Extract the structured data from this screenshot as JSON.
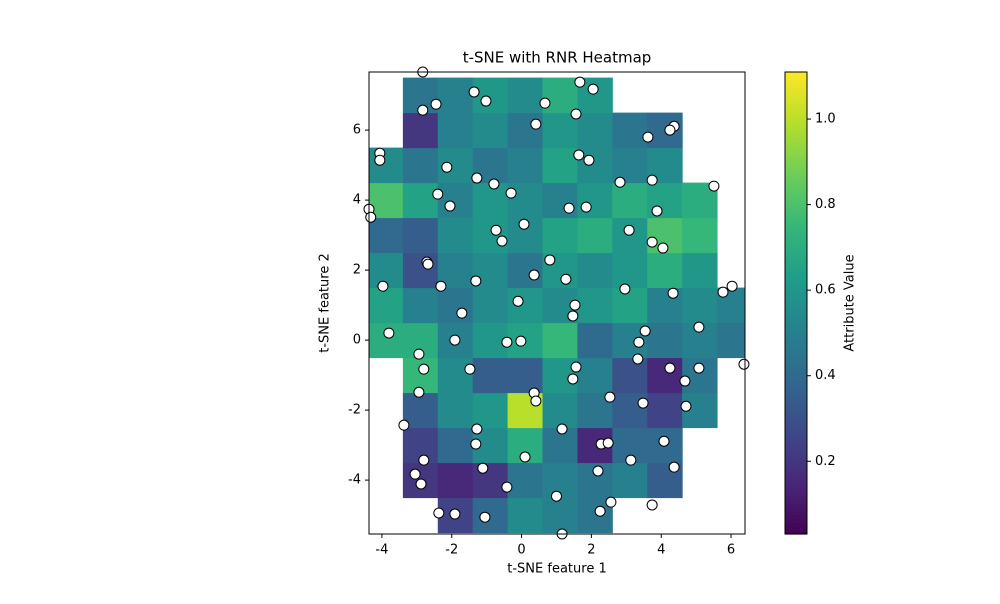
{
  "chart_data": {
    "type": "scatter-heatmap",
    "title": "t-SNE with RNR Heatmap",
    "x_label": "t-SNE feature 1",
    "y_label": "t-SNE feature 2",
    "colorbar_label": "Attribute Value",
    "xlim": [
      -4.37,
      6.4
    ],
    "ylim": [
      -5.54,
      7.66
    ],
    "xticks": [
      -4,
      -2,
      0,
      2,
      4,
      6
    ],
    "yticks": [
      -4,
      -2,
      0,
      2,
      4,
      6
    ],
    "clim": [
      0.03,
      1.11
    ],
    "cticks": [
      0.2,
      0.4,
      0.6,
      0.8,
      {
        "value": 1,
        "label": "1.0"
      }
    ],
    "colormap": "viridis",
    "point_color": "#ffffff",
    "point_edge": "#000000",
    "heatmap": {
      "x_edges": [
        -4.4,
        -3.4,
        -2.4,
        -1.4,
        -0.4,
        0.6,
        1.6,
        2.6,
        3.6,
        4.6,
        5.6,
        6.6
      ],
      "y_edges": [
        -5.5,
        -4.5,
        -3.5,
        -2.5,
        -1.5,
        -0.5,
        0.5,
        1.5,
        2.5,
        3.5,
        4.5,
        5.5,
        6.5,
        7.5
      ],
      "values": [
        [
          null,
          null,
          0.25,
          0.4,
          0.55,
          0.5,
          0.45,
          null,
          null,
          null,
          null
        ],
        [
          null,
          0.2,
          0.15,
          0.2,
          0.45,
          0.5,
          0.45,
          0.5,
          0.35,
          null,
          null
        ],
        [
          null,
          0.25,
          0.4,
          0.55,
          0.7,
          0.45,
          0.15,
          0.4,
          0.4,
          null,
          null
        ],
        [
          null,
          0.35,
          0.55,
          0.6,
          1.0,
          0.55,
          0.45,
          0.35,
          0.25,
          0.5,
          null
        ],
        [
          null,
          0.75,
          0.55,
          0.35,
          0.35,
          0.6,
          0.5,
          0.3,
          0.15,
          0.45,
          null
        ],
        [
          0.7,
          0.7,
          0.5,
          0.6,
          0.65,
          0.75,
          0.4,
          0.5,
          0.45,
          0.5,
          0.45
        ],
        [
          0.65,
          0.5,
          0.45,
          0.55,
          0.6,
          0.55,
          0.6,
          0.65,
          0.5,
          0.55,
          0.5
        ],
        [
          0.55,
          0.3,
          0.5,
          0.55,
          0.45,
          0.6,
          0.55,
          0.6,
          0.7,
          0.6,
          null
        ],
        [
          0.4,
          0.35,
          0.55,
          0.6,
          0.55,
          0.65,
          0.7,
          0.6,
          0.8,
          0.75,
          null
        ],
        [
          0.8,
          0.65,
          0.5,
          0.6,
          0.55,
          0.5,
          0.6,
          0.7,
          0.65,
          0.7,
          null
        ],
        [
          0.55,
          0.45,
          0.55,
          0.45,
          0.5,
          0.65,
          0.55,
          0.5,
          0.55,
          null,
          null
        ],
        [
          null,
          0.2,
          0.5,
          0.55,
          0.45,
          0.6,
          0.55,
          0.45,
          0.4,
          null,
          null
        ],
        [
          null,
          0.45,
          0.5,
          0.6,
          0.55,
          0.7,
          0.6,
          null,
          null,
          null,
          null
        ]
      ]
    },
    "x": [
      -2.83,
      -1.36,
      -1.02,
      1.67,
      2.05,
      0.67,
      -2.45,
      -2.83,
      1.56,
      0.41,
      4.37,
      4.25,
      3.62,
      -4.06,
      -4.06,
      1.64,
      1.93,
      -2.14,
      -1.28,
      -0.79,
      2.82,
      3.74,
      5.51,
      -2.4,
      -0.3,
      -2.05,
      1.36,
      1.85,
      3.88,
      -4.37,
      -4.32,
      0.07,
      -0.73,
      3.08,
      -0.56,
      3.74,
      4.05,
      -2.71,
      -2.68,
      0.81,
      0.36,
      1.27,
      -1.31,
      -3.97,
      -2.31,
      2.96,
      4.34,
      5.77,
      6.03,
      -0.1,
      1.53,
      -1.71,
      1.47,
      5.08,
      3.54,
      -3.8,
      -1.91,
      -0.42,
      -0.02,
      3.36,
      6.37,
      -2.94,
      3.33,
      -2.8,
      -1.48,
      1.56,
      4.25,
      5.08,
      1.47,
      4.68,
      -2.94,
      0.36,
      0.41,
      2.53,
      3.48,
      4.71,
      -3.37,
      -1.28,
      1.16,
      -1.31,
      2.28,
      2.48,
      4.08,
      3.13,
      -2.8,
      0.1,
      -1.11,
      4.37,
      2.19,
      -3.05,
      -2.88,
      -0.42,
      1.0,
      2.56,
      3.74,
      -2.37,
      -1.91,
      -1.05,
      2.25,
      1.16
    ],
    "y": [
      7.66,
      7.09,
      6.83,
      7.37,
      7.17,
      6.77,
      6.74,
      6.57,
      6.46,
      6.17,
      6.11,
      6.0,
      5.8,
      5.34,
      5.14,
      5.29,
      5.14,
      4.94,
      4.63,
      4.46,
      4.51,
      4.57,
      4.4,
      4.17,
      4.2,
      3.83,
      3.77,
      3.8,
      3.69,
      3.74,
      3.51,
      3.31,
      3.14,
      3.14,
      2.83,
      2.8,
      2.63,
      2.23,
      2.17,
      2.29,
      1.86,
      1.74,
      1.69,
      1.54,
      1.54,
      1.46,
      1.34,
      1.37,
      1.54,
      1.11,
      1.0,
      0.77,
      0.69,
      0.37,
      0.26,
      0.2,
      0,
      -0.06,
      -0.03,
      -0.06,
      -0.69,
      -0.4,
      -0.54,
      -0.83,
      -0.83,
      -0.77,
      -0.8,
      -0.8,
      -1.11,
      -1.17,
      -1.49,
      -1.51,
      -1.74,
      -1.63,
      -1.8,
      -1.89,
      -2.43,
      -2.54,
      -2.54,
      -2.97,
      -2.97,
      -2.94,
      -2.89,
      -3.43,
      -3.43,
      -3.34,
      -3.66,
      -3.63,
      -3.74,
      -3.83,
      -4.11,
      -4.2,
      -4.46,
      -4.63,
      -4.71,
      -4.94,
      -4.97,
      -5.06,
      -4.89,
      -5.54
    ]
  }
}
